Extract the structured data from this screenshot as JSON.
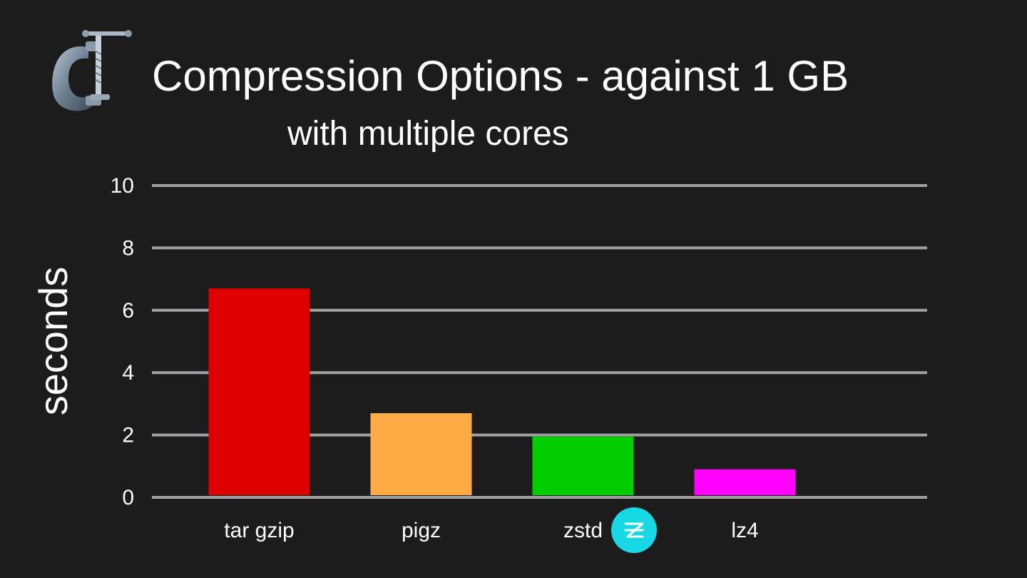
{
  "slide": {
    "title": "Compression Options - against 1 GB",
    "subtitle": "with multiple cores",
    "icons": {
      "clamp": "clamp-icon",
      "zstd_logo": "zstd-logo-icon"
    }
  },
  "chart_data": {
    "type": "bar",
    "categories": [
      "tar gzip",
      "pigz",
      "zstd",
      "lz4"
    ],
    "values": [
      6.7,
      2.7,
      1.95,
      0.9
    ],
    "colors": [
      "#dd0000",
      "#fdaa45",
      "#00cc00",
      "#ff00ff"
    ],
    "ylabel": "seconds",
    "xlabel": "",
    "ylim": [
      0,
      10
    ],
    "yticks": [
      0,
      2,
      4,
      6,
      8,
      10
    ],
    "grid": true,
    "gridline_color": "#a0a0a0",
    "background": "#1c1c1c"
  }
}
